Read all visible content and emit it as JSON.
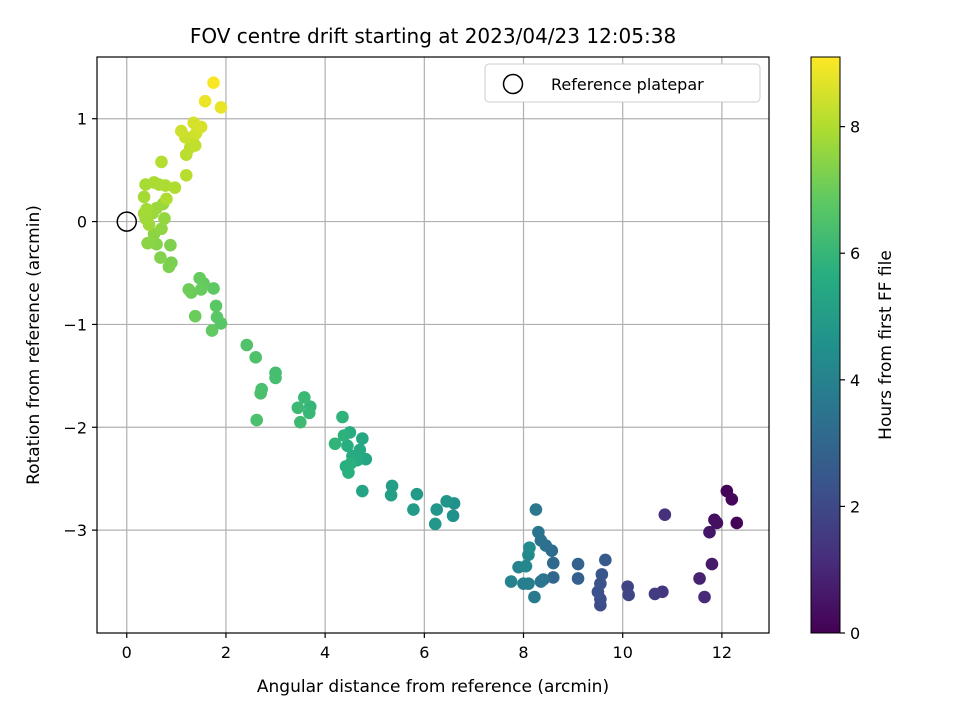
{
  "chart_data": {
    "type": "scatter",
    "title": "FOV centre drift starting at 2023/04/23 12:05:38",
    "xlabel": "Angular distance from reference (arcmin)",
    "ylabel": "Rotation from reference (arcmin)",
    "xlim": [
      -0.6,
      12.95
    ],
    "ylim": [
      -4.0,
      1.6
    ],
    "xticks": [
      0,
      2,
      4,
      6,
      8,
      10,
      12
    ],
    "yticks": [
      -3,
      -2,
      -1,
      0,
      1
    ],
    "grid": true,
    "legend": {
      "position": "top-right",
      "entries": [
        "Reference platepar"
      ]
    },
    "reference_point": {
      "x": 0,
      "y": 0
    },
    "colorbar": {
      "label": "Hours from first FF file",
      "range": [
        0,
        9.1
      ],
      "ticks": [
        0,
        2,
        4,
        6,
        8
      ],
      "colormap": "viridis"
    },
    "points": [
      {
        "x": 12.1,
        "y": -2.62,
        "c": 0.05
      },
      {
        "x": 12.2,
        "y": -2.7,
        "c": 0.15
      },
      {
        "x": 12.3,
        "y": -2.93,
        "c": 0.1
      },
      {
        "x": 11.85,
        "y": -2.9,
        "c": 0.35
      },
      {
        "x": 11.9,
        "y": -2.93,
        "c": 0.4
      },
      {
        "x": 11.75,
        "y": -3.02,
        "c": 0.55
      },
      {
        "x": 11.8,
        "y": -3.33,
        "c": 0.65
      },
      {
        "x": 11.55,
        "y": -3.47,
        "c": 0.85
      },
      {
        "x": 11.65,
        "y": -3.65,
        "c": 1.05
      },
      {
        "x": 10.85,
        "y": -2.85,
        "c": 1.25
      },
      {
        "x": 10.8,
        "y": -3.6,
        "c": 1.45
      },
      {
        "x": 10.65,
        "y": -3.62,
        "c": 1.6
      },
      {
        "x": 10.1,
        "y": -3.55,
        "c": 1.8
      },
      {
        "x": 10.12,
        "y": -3.63,
        "c": 1.9
      },
      {
        "x": 9.55,
        "y": -3.73,
        "c": 2.05
      },
      {
        "x": 9.55,
        "y": -3.67,
        "c": 2.15
      },
      {
        "x": 9.5,
        "y": -3.6,
        "c": 2.25
      },
      {
        "x": 9.55,
        "y": -3.52,
        "c": 2.35
      },
      {
        "x": 9.58,
        "y": -3.43,
        "c": 2.45
      },
      {
        "x": 9.65,
        "y": -3.29,
        "c": 2.55
      },
      {
        "x": 9.1,
        "y": -3.47,
        "c": 2.75
      },
      {
        "x": 9.1,
        "y": -3.33,
        "c": 2.85
      },
      {
        "x": 8.6,
        "y": -3.46,
        "c": 3.0
      },
      {
        "x": 8.6,
        "y": -3.32,
        "c": 3.1
      },
      {
        "x": 8.57,
        "y": -3.2,
        "c": 3.2
      },
      {
        "x": 8.45,
        "y": -3.15,
        "c": 3.3
      },
      {
        "x": 8.35,
        "y": -3.1,
        "c": 3.4
      },
      {
        "x": 8.3,
        "y": -3.02,
        "c": 3.5
      },
      {
        "x": 8.25,
        "y": -2.8,
        "c": 3.6
      },
      {
        "x": 8.4,
        "y": -3.48,
        "c": 3.45
      },
      {
        "x": 8.35,
        "y": -3.5,
        "c": 3.55
      },
      {
        "x": 8.22,
        "y": -3.65,
        "c": 3.7
      },
      {
        "x": 8.1,
        "y": -3.52,
        "c": 3.8
      },
      {
        "x": 8.0,
        "y": -3.52,
        "c": 3.9
      },
      {
        "x": 7.75,
        "y": -3.5,
        "c": 4.0
      },
      {
        "x": 7.9,
        "y": -3.36,
        "c": 4.05
      },
      {
        "x": 8.05,
        "y": -3.35,
        "c": 4.15
      },
      {
        "x": 8.1,
        "y": -3.24,
        "c": 4.25
      },
      {
        "x": 8.12,
        "y": -3.17,
        "c": 4.35
      },
      {
        "x": 6.6,
        "y": -2.74,
        "c": 4.55
      },
      {
        "x": 6.58,
        "y": -2.86,
        "c": 4.6
      },
      {
        "x": 6.45,
        "y": -2.72,
        "c": 4.7
      },
      {
        "x": 6.25,
        "y": -2.8,
        "c": 4.75
      },
      {
        "x": 6.22,
        "y": -2.94,
        "c": 4.8
      },
      {
        "x": 5.85,
        "y": -2.65,
        "c": 4.9
      },
      {
        "x": 5.78,
        "y": -2.8,
        "c": 4.95
      },
      {
        "x": 5.35,
        "y": -2.57,
        "c": 5.05
      },
      {
        "x": 5.33,
        "y": -2.66,
        "c": 5.1
      },
      {
        "x": 4.75,
        "y": -2.62,
        "c": 5.25
      },
      {
        "x": 4.82,
        "y": -2.31,
        "c": 5.35
      },
      {
        "x": 4.75,
        "y": -2.11,
        "c": 5.4
      },
      {
        "x": 4.7,
        "y": -2.22,
        "c": 5.45
      },
      {
        "x": 4.65,
        "y": -2.32,
        "c": 5.5
      },
      {
        "x": 4.55,
        "y": -2.28,
        "c": 5.55
      },
      {
        "x": 4.5,
        "y": -2.05,
        "c": 5.6
      },
      {
        "x": 4.45,
        "y": -2.18,
        "c": 5.65
      },
      {
        "x": 4.42,
        "y": -2.38,
        "c": 5.7
      },
      {
        "x": 4.47,
        "y": -2.44,
        "c": 5.72
      },
      {
        "x": 4.52,
        "y": -2.35,
        "c": 5.75
      },
      {
        "x": 4.38,
        "y": -2.08,
        "c": 5.8
      },
      {
        "x": 4.35,
        "y": -1.9,
        "c": 5.85
      },
      {
        "x": 4.2,
        "y": -2.16,
        "c": 5.9
      },
      {
        "x": 3.7,
        "y": -1.8,
        "c": 6.0
      },
      {
        "x": 3.68,
        "y": -1.86,
        "c": 6.05
      },
      {
        "x": 3.58,
        "y": -1.71,
        "c": 6.1
      },
      {
        "x": 3.45,
        "y": -1.81,
        "c": 6.15
      },
      {
        "x": 3.5,
        "y": -1.95,
        "c": 6.2
      },
      {
        "x": 3.0,
        "y": -1.47,
        "c": 6.3
      },
      {
        "x": 3.0,
        "y": -1.52,
        "c": 6.32
      },
      {
        "x": 2.72,
        "y": -1.63,
        "c": 6.4
      },
      {
        "x": 2.7,
        "y": -1.67,
        "c": 6.42
      },
      {
        "x": 2.62,
        "y": -1.93,
        "c": 6.45
      },
      {
        "x": 2.6,
        "y": -1.32,
        "c": 6.5
      },
      {
        "x": 2.42,
        "y": -1.2,
        "c": 6.55
      },
      {
        "x": 1.9,
        "y": -0.99,
        "c": 6.7
      },
      {
        "x": 1.82,
        "y": -0.93,
        "c": 6.72
      },
      {
        "x": 1.8,
        "y": -0.82,
        "c": 6.75
      },
      {
        "x": 1.75,
        "y": -0.65,
        "c": 6.8
      },
      {
        "x": 1.72,
        "y": -1.06,
        "c": 6.85
      },
      {
        "x": 1.55,
        "y": -0.6,
        "c": 6.9
      },
      {
        "x": 1.47,
        "y": -0.55,
        "c": 6.92
      },
      {
        "x": 1.5,
        "y": -0.66,
        "c": 6.95
      },
      {
        "x": 1.38,
        "y": -0.92,
        "c": 7.0
      },
      {
        "x": 1.3,
        "y": -0.69,
        "c": 7.02
      },
      {
        "x": 1.25,
        "y": -0.66,
        "c": 7.05
      },
      {
        "x": 0.9,
        "y": -0.4,
        "c": 7.2
      },
      {
        "x": 0.85,
        "y": -0.44,
        "c": 7.25
      },
      {
        "x": 0.88,
        "y": -0.23,
        "c": 7.3
      },
      {
        "x": 0.68,
        "y": -0.35,
        "c": 7.35
      },
      {
        "x": 0.6,
        "y": -0.22,
        "c": 7.4
      },
      {
        "x": 0.5,
        "y": -0.2,
        "c": 7.45
      },
      {
        "x": 0.42,
        "y": -0.21,
        "c": 7.48
      },
      {
        "x": 0.55,
        "y": -0.12,
        "c": 7.5
      },
      {
        "x": 0.7,
        "y": -0.07,
        "c": 7.55
      },
      {
        "x": 0.76,
        "y": 0.03,
        "c": 7.6
      },
      {
        "x": 0.73,
        "y": 0.17,
        "c": 7.65
      },
      {
        "x": 0.6,
        "y": 0.13,
        "c": 7.7
      },
      {
        "x": 0.52,
        "y": 0.08,
        "c": 7.72
      },
      {
        "x": 0.45,
        "y": -0.03,
        "c": 7.75
      },
      {
        "x": 0.38,
        "y": 0.03,
        "c": 7.78
      },
      {
        "x": 0.35,
        "y": 0.08,
        "c": 7.8
      },
      {
        "x": 0.4,
        "y": 0.12,
        "c": 7.82
      },
      {
        "x": 0.35,
        "y": 0.24,
        "c": 7.85
      },
      {
        "x": 0.38,
        "y": 0.36,
        "c": 7.88
      },
      {
        "x": 0.55,
        "y": 0.38,
        "c": 7.9
      },
      {
        "x": 0.65,
        "y": 0.36,
        "c": 7.92
      },
      {
        "x": 0.78,
        "y": 0.35,
        "c": 7.95
      },
      {
        "x": 0.8,
        "y": 0.22,
        "c": 7.98
      },
      {
        "x": 0.97,
        "y": 0.33,
        "c": 8.0
      },
      {
        "x": 0.7,
        "y": 0.58,
        "c": 8.05
      },
      {
        "x": 1.2,
        "y": 0.45,
        "c": 8.1
      },
      {
        "x": 1.2,
        "y": 0.65,
        "c": 8.15
      },
      {
        "x": 1.28,
        "y": 0.72,
        "c": 8.2
      },
      {
        "x": 1.38,
        "y": 0.74,
        "c": 8.25
      },
      {
        "x": 1.35,
        "y": 0.83,
        "c": 8.3
      },
      {
        "x": 1.18,
        "y": 0.82,
        "c": 8.35
      },
      {
        "x": 1.1,
        "y": 0.88,
        "c": 8.4
      },
      {
        "x": 1.4,
        "y": 0.86,
        "c": 8.45
      },
      {
        "x": 1.35,
        "y": 0.96,
        "c": 8.5
      },
      {
        "x": 1.5,
        "y": 0.92,
        "c": 8.55
      },
      {
        "x": 1.9,
        "y": 1.11,
        "c": 8.8
      },
      {
        "x": 1.58,
        "y": 1.17,
        "c": 8.85
      },
      {
        "x": 1.75,
        "y": 1.35,
        "c": 9.05
      }
    ]
  }
}
